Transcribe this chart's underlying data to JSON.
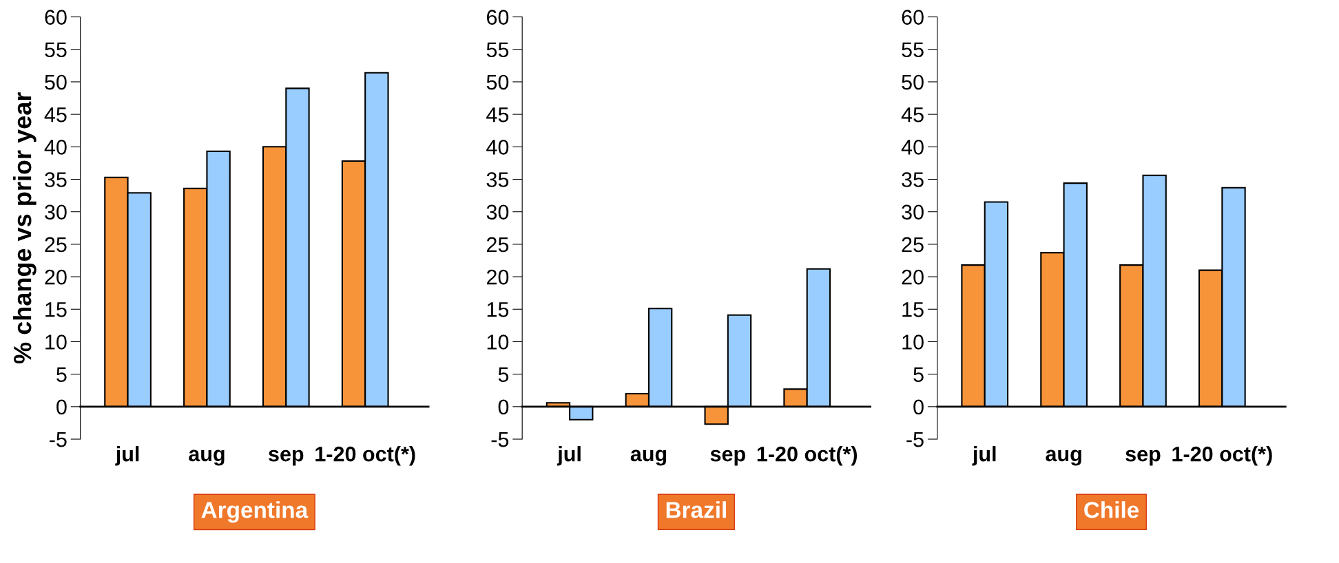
{
  "chart_data": [
    {
      "type": "bar",
      "title": "Argentina",
      "ylabel": "% change vs prior year",
      "categories": [
        "jul",
        "aug",
        "sep",
        "1-20 oct(*)"
      ],
      "ylim": [
        -5,
        60
      ],
      "yticks": [
        -5,
        0,
        5,
        10,
        15,
        20,
        25,
        30,
        35,
        40,
        45,
        50,
        55,
        60
      ],
      "grid": false,
      "legend": false,
      "series": [
        {
          "color": "#f7943a",
          "values": [
            35.3,
            33.6,
            40.0,
            37.8
          ]
        },
        {
          "color": "#99ccff",
          "values": [
            32.9,
            39.3,
            49.0,
            51.4
          ]
        }
      ]
    },
    {
      "type": "bar",
      "title": "Brazil",
      "categories": [
        "jul",
        "aug",
        "sep",
        "1-20 oct(*)"
      ],
      "ylim": [
        -5,
        60
      ],
      "yticks": [
        -5,
        0,
        5,
        10,
        15,
        20,
        25,
        30,
        35,
        40,
        45,
        50,
        55,
        60
      ],
      "grid": false,
      "legend": false,
      "series": [
        {
          "color": "#f7943a",
          "values": [
            0.6,
            2.0,
            -2.7,
            2.7
          ]
        },
        {
          "color": "#99ccff",
          "values": [
            -2.0,
            15.1,
            14.1,
            21.2
          ]
        }
      ]
    },
    {
      "type": "bar",
      "title": "Chile",
      "categories": [
        "jul",
        "aug",
        "sep",
        "1-20 oct(*)"
      ],
      "ylim": [
        -5,
        60
      ],
      "yticks": [
        -5,
        0,
        5,
        10,
        15,
        20,
        25,
        30,
        35,
        40,
        45,
        50,
        55,
        60
      ],
      "grid": false,
      "legend": false,
      "series": [
        {
          "color": "#f7943a",
          "values": [
            21.8,
            23.7,
            21.8,
            21.0
          ]
        },
        {
          "color": "#99ccff",
          "values": [
            31.5,
            34.4,
            35.6,
            33.7
          ]
        }
      ]
    }
  ]
}
